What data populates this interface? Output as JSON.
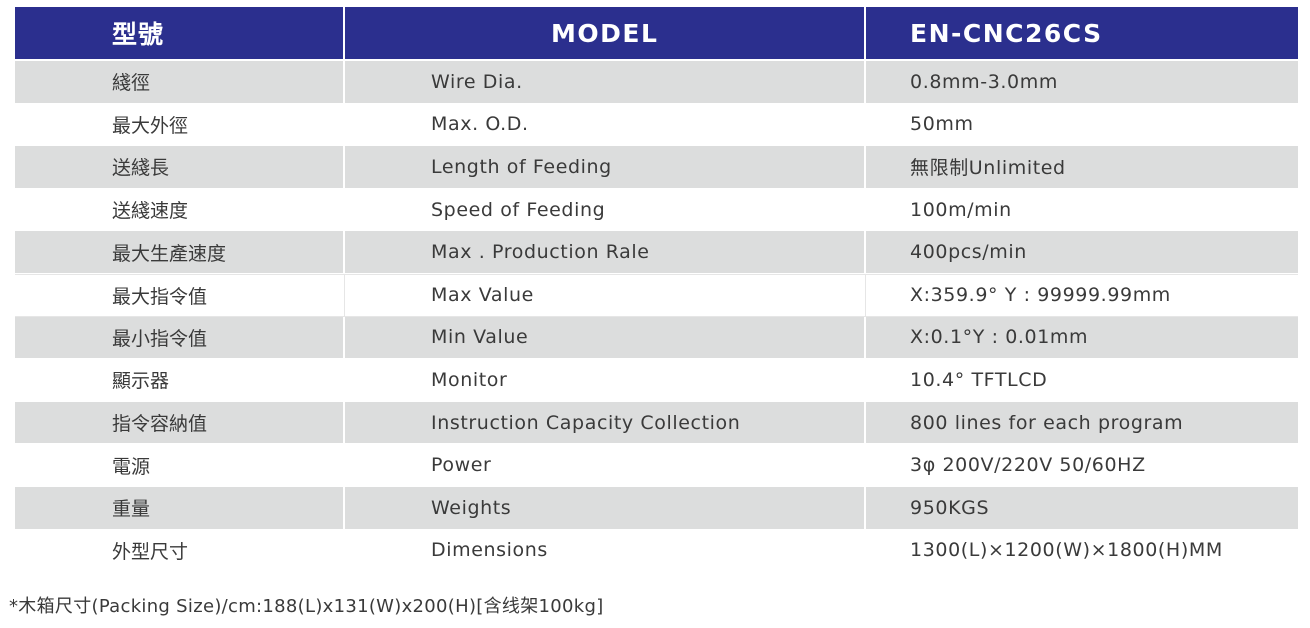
{
  "header": {
    "col1": "型號",
    "col2": "MODEL",
    "col3": "EN-CNC26CS"
  },
  "rows": [
    {
      "zh": "綫徑",
      "en": "Wire Dia.",
      "value": "0.8mm-3.0mm"
    },
    {
      "zh": "最大外徑",
      "en": "Max. O.D.",
      "value": "50mm"
    },
    {
      "zh": "送綫長",
      "en": "Length of Feeding",
      "value": "無限制Unlimited"
    },
    {
      "zh": "送綫速度",
      "en": "Speed of Feeding",
      "value": "100m/min"
    },
    {
      "zh": "最大生產速度",
      "en": "Max . Production Rale",
      "value": "400pcs/min"
    },
    {
      "zh": "最大指令值",
      "en": "Max Value",
      "value": "X:359.9° Y : 99999.99mm"
    },
    {
      "zh": "最小指令值",
      "en": "Min Value",
      "value": "X:0.1°Y : 0.01mm"
    },
    {
      "zh": "顯示器",
      "en": "Monitor",
      "value": "10.4° TFTLCD"
    },
    {
      "zh": "指令容納值",
      "en": "Instruction Capacity Collection",
      "value": "800 lines for each program"
    },
    {
      "zh": "電源",
      "en": "Power",
      "value": "3φ 200V/220V 50/60HZ"
    },
    {
      "zh": "重量",
      "en": "Weights",
      "value": "950KGS"
    },
    {
      "zh": "外型尺寸",
      "en": "Dimensions",
      "value": "1300(L)×1200(W)×1800(H)MM"
    }
  ],
  "footnote": "*木箱尺寸(Packing Size)/cm:188(L)x131(W)x200(H)[含线架100kg]",
  "colors": {
    "header_bg": "#2b2f8e",
    "shaded_row_bg": "#dcdddd",
    "text": "#3a3a3a"
  }
}
